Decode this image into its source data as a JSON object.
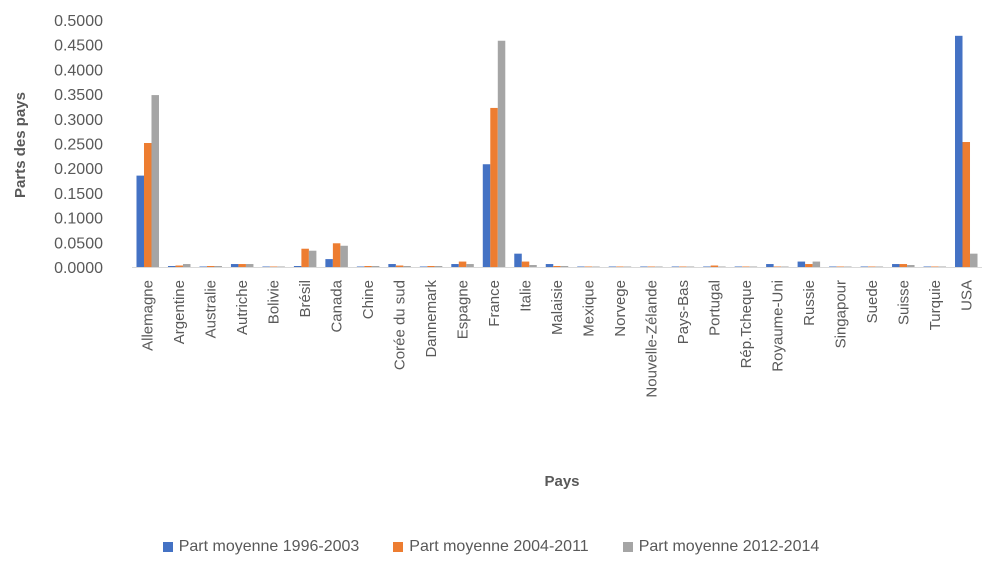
{
  "chart_data": {
    "type": "bar",
    "title": "",
    "xlabel": "Pays",
    "ylabel": "Parts des pays",
    "ylim": [
      0,
      0.5
    ],
    "yticks": [
      "0.0000",
      "0.0500",
      "0.1000",
      "0.1500",
      "0.2000",
      "0.2500",
      "0.3000",
      "0.3500",
      "0.4000",
      "0.4500",
      "0.5000"
    ],
    "categories": [
      "Allemagne",
      "Argentine",
      "Australie",
      "Autriche",
      "Bolivie",
      "Brésil",
      "Canada",
      "Chine",
      "Corée du sud",
      "Dannemark",
      "Espagne",
      "France",
      "Italie",
      "Malaisie",
      "Mexique",
      "Norvege",
      "Nouvelle-Zélande",
      "Pays-Bas",
      "Portugal",
      "Rép.Tcheque",
      "Royaume-Uni",
      "Russie",
      "Singapour",
      "Suede",
      "Suisse",
      "Turquie",
      "USA"
    ],
    "series": [
      {
        "name": "Part moyenne 1996-2003",
        "color": "#4472C4",
        "values": [
          0.185,
          0.002,
          0.001,
          0.006,
          0.001,
          0.002,
          0.016,
          0.001,
          0.006,
          0.001,
          0.006,
          0.208,
          0.027,
          0.006,
          0.001,
          0.001,
          0.001,
          0.001,
          0.001,
          0.001,
          0.006,
          0.011,
          0.001,
          0.001,
          0.006,
          0.001,
          0.468
        ]
      },
      {
        "name": "Part moyenne 2004-2011",
        "color": "#ED7D31",
        "values": [
          0.251,
          0.003,
          0.002,
          0.006,
          0.001,
          0.037,
          0.048,
          0.002,
          0.003,
          0.002,
          0.011,
          0.322,
          0.011,
          0.002,
          0.001,
          0.001,
          0.001,
          0.001,
          0.003,
          0.001,
          0.001,
          0.006,
          0.001,
          0.001,
          0.006,
          0.001,
          0.253
        ]
      },
      {
        "name": "Part moyenne 2012-2014",
        "color": "#A5A5A5",
        "values": [
          0.348,
          0.006,
          0.002,
          0.006,
          0.001,
          0.033,
          0.043,
          0.002,
          0.002,
          0.002,
          0.006,
          0.458,
          0.004,
          0.002,
          0.001,
          0.001,
          0.001,
          0.001,
          0.001,
          0.001,
          0.001,
          0.011,
          0.001,
          0.001,
          0.004,
          0.001,
          0.027
        ]
      }
    ],
    "grid": false,
    "legend": "bottom"
  }
}
